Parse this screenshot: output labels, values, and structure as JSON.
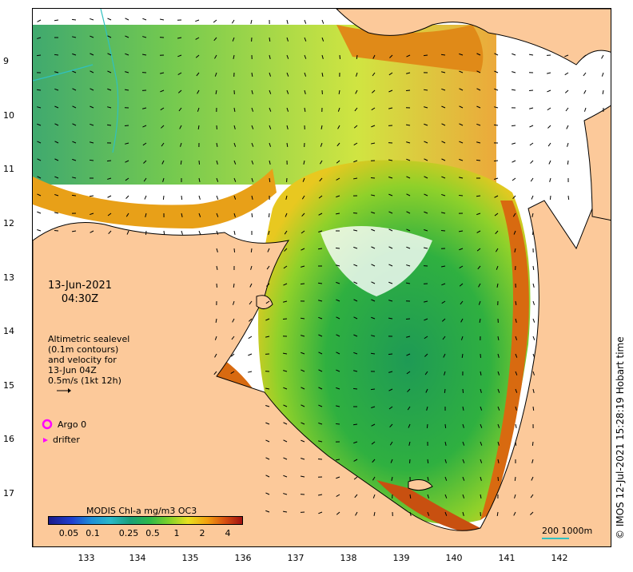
{
  "timestamp": {
    "date": "13-Jun-2021",
    "time": "04:30Z"
  },
  "altimetry_legend": {
    "lines": [
      "Altimetric sealevel",
      "(0.1m contours)",
      "and velocity for",
      "13-Jun 04Z",
      "0.5m/s (1kt 12h)"
    ]
  },
  "markers": {
    "argo_label": "Argo 0",
    "drifter_label": "drifter",
    "argo_color": "#ff00ff",
    "drifter_color": "#ff00ff"
  },
  "colorbar": {
    "title": "MODIS Chl-a mg/m3 OC3",
    "ticks": [
      "0.05",
      "0.1",
      "0.25",
      "0.5",
      "1",
      "2",
      "4"
    ],
    "tick_values": [
      0.05,
      0.1,
      0.25,
      0.5,
      1,
      2,
      4
    ]
  },
  "scale": {
    "label": "200  1000m"
  },
  "credit": "© IMOS 12-Jul-2021 15:28:19 Hobart time",
  "axes": {
    "lat_ticks": [
      "9",
      "10",
      "11",
      "12",
      "13",
      "14",
      "15",
      "16",
      "17"
    ],
    "lat_values": [
      -9,
      -10,
      -11,
      -12,
      -13,
      -14,
      -15,
      -16,
      -17
    ],
    "lon_ticks": [
      "133",
      "134",
      "135",
      "136",
      "137",
      "138",
      "139",
      "140",
      "141",
      "142"
    ],
    "lon_values": [
      133,
      134,
      135,
      136,
      137,
      138,
      139,
      140,
      141,
      142
    ],
    "lon_range": [
      132.0,
      142.9
    ],
    "lat_range": [
      -8.2,
      -17.85
    ]
  },
  "colors": {
    "land": "#fcc99a",
    "coast": "#000000",
    "no_data": "#ffffff",
    "contour": "#30c0c0"
  }
}
